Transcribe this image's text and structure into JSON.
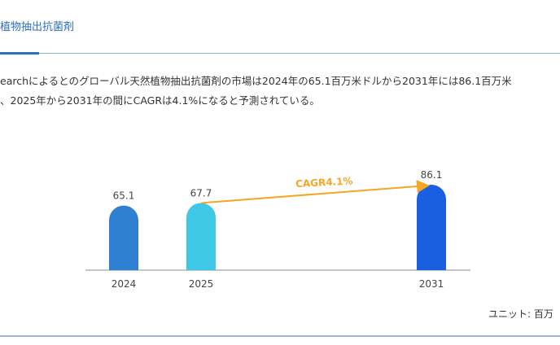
{
  "header": {
    "title": "植物抽出抗菌剤"
  },
  "paragraph": {
    "line1": "earchによるとのグローバル天然植物抽出抗菌剤の市場は2024年の65.1百万米ドルから2031年には86.1百万米",
    "line2": "、2025年から2031年の間にCAGRは4.1%になると予測されている。"
  },
  "chart_data": {
    "type": "bar",
    "categories": [
      "2024",
      "2025",
      "2031"
    ],
    "values": [
      65.1,
      67.7,
      86.1
    ],
    "value_labels": [
      "65.1",
      "67.7",
      "86.1"
    ],
    "colors": [
      "#2f80d1",
      "#3ec8e6",
      "#1a5fe0"
    ],
    "annotation": {
      "text": "CAGR4.1%",
      "from": "2025",
      "to": "2031",
      "color": "#f5a623"
    },
    "unit_label": "ユニット: 百万",
    "grid": false,
    "ylim": [
      0,
      86.1
    ]
  }
}
